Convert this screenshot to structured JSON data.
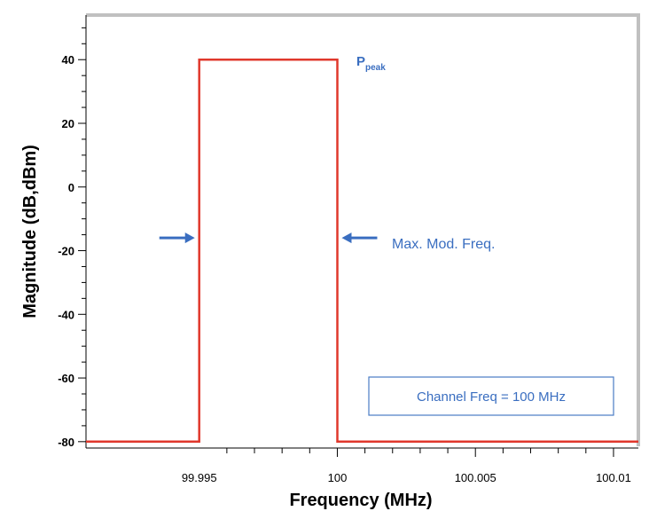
{
  "chart_data": {
    "type": "line",
    "xlabel": "Frequency (MHz)",
    "ylabel": "Magnitude (dB,dBm)",
    "xlim": [
      99.9909,
      100.0109
    ],
    "ylim": [
      -82,
      54
    ],
    "x_ticks": [
      99.995,
      100,
      100.005,
      100.01
    ],
    "x_tick_labels": [
      "99.995",
      "100",
      "100.005",
      "100.01"
    ],
    "y_ticks": [
      40,
      20,
      0,
      -20,
      -40,
      -60,
      -80
    ],
    "y_tick_labels": [
      "40",
      "20",
      "0",
      "-20",
      "-40",
      "-60",
      "-80"
    ],
    "grid": false,
    "series": [
      {
        "color": "#e0382c",
        "x": [
          99.9909,
          99.995,
          99.995,
          100.0,
          100.0,
          100.0109
        ],
        "y": [
          -80,
          -80,
          40,
          40,
          -80,
          -80
        ]
      }
    ],
    "annotations": {
      "peak_label_main": "P",
      "peak_label_sub": "peak",
      "mod_freq_label": "Max. Mod. Freq.",
      "channel_box": "Channel Freq = 100 MHz",
      "arrow_level": -16
    },
    "colors": {
      "line": "#e0382c",
      "annotation": "#3a6ec0",
      "frame": "#c0c0c0"
    }
  }
}
